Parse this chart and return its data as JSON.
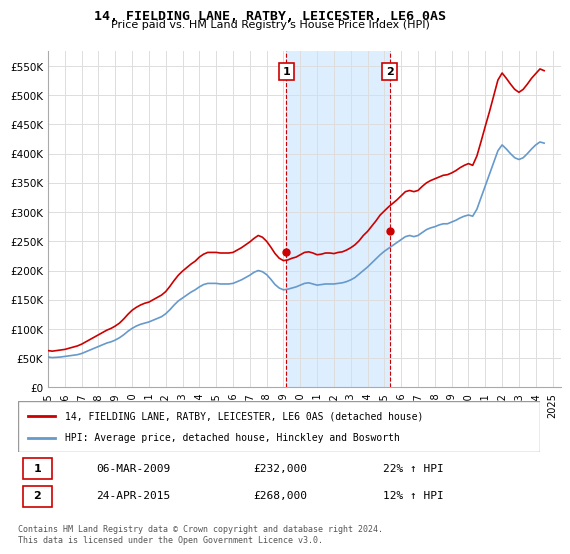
{
  "title": "14, FIELDING LANE, RATBY, LEICESTER, LE6 0AS",
  "subtitle": "Price paid vs. HM Land Registry's House Price Index (HPI)",
  "ylabel_ticks": [
    "£0",
    "£50K",
    "£100K",
    "£150K",
    "£200K",
    "£250K",
    "£300K",
    "£350K",
    "£400K",
    "£450K",
    "£500K",
    "£550K"
  ],
  "ytick_values": [
    0,
    50000,
    100000,
    150000,
    200000,
    250000,
    300000,
    350000,
    400000,
    450000,
    500000,
    550000
  ],
  "ylim": [
    0,
    575000
  ],
  "xlim_start": 1995.0,
  "xlim_end": 2025.5,
  "xtick_years": [
    1995,
    1996,
    1997,
    1998,
    1999,
    2000,
    2001,
    2002,
    2003,
    2004,
    2005,
    2006,
    2007,
    2008,
    2009,
    2010,
    2011,
    2012,
    2013,
    2014,
    2015,
    2016,
    2017,
    2018,
    2019,
    2020,
    2021,
    2022,
    2023,
    2024,
    2025
  ],
  "sale1_x": 2009.17,
  "sale1_y": 232000,
  "sale1_label": "1",
  "sale1_date": "06-MAR-2009",
  "sale1_price": "£232,000",
  "sale1_hpi": "22% ↑ HPI",
  "sale2_x": 2015.31,
  "sale2_y": 268000,
  "sale2_label": "2",
  "sale2_date": "24-APR-2015",
  "sale2_price": "£268,000",
  "sale2_hpi": "12% ↑ HPI",
  "shaded_region_x1": 2009.17,
  "shaded_region_x2": 2015.31,
  "red_line_color": "#cc0000",
  "blue_line_color": "#6699cc",
  "shaded_color": "#ddeeff",
  "grid_color": "#dddddd",
  "legend_label_red": "14, FIELDING LANE, RATBY, LEICESTER, LE6 0AS (detached house)",
  "legend_label_blue": "HPI: Average price, detached house, Hinckley and Bosworth",
  "footnote": "Contains HM Land Registry data © Crown copyright and database right 2024.\nThis data is licensed under the Open Government Licence v3.0.",
  "hpi_data_x": [
    1995.0,
    1995.25,
    1995.5,
    1995.75,
    1996.0,
    1996.25,
    1996.5,
    1996.75,
    1997.0,
    1997.25,
    1997.5,
    1997.75,
    1998.0,
    1998.25,
    1998.5,
    1998.75,
    1999.0,
    1999.25,
    1999.5,
    1999.75,
    2000.0,
    2000.25,
    2000.5,
    2000.75,
    2001.0,
    2001.25,
    2001.5,
    2001.75,
    2002.0,
    2002.25,
    2002.5,
    2002.75,
    2003.0,
    2003.25,
    2003.5,
    2003.75,
    2004.0,
    2004.25,
    2004.5,
    2004.75,
    2005.0,
    2005.25,
    2005.5,
    2005.75,
    2006.0,
    2006.25,
    2006.5,
    2006.75,
    2007.0,
    2007.25,
    2007.5,
    2007.75,
    2008.0,
    2008.25,
    2008.5,
    2008.75,
    2009.0,
    2009.25,
    2009.5,
    2009.75,
    2010.0,
    2010.25,
    2010.5,
    2010.75,
    2011.0,
    2011.25,
    2011.5,
    2011.75,
    2012.0,
    2012.25,
    2012.5,
    2012.75,
    2013.0,
    2013.25,
    2013.5,
    2013.75,
    2014.0,
    2014.25,
    2014.5,
    2014.75,
    2015.0,
    2015.25,
    2015.5,
    2015.75,
    2016.0,
    2016.25,
    2016.5,
    2016.75,
    2017.0,
    2017.25,
    2017.5,
    2017.75,
    2018.0,
    2018.25,
    2018.5,
    2018.75,
    2019.0,
    2019.25,
    2019.5,
    2019.75,
    2020.0,
    2020.25,
    2020.5,
    2020.75,
    2021.0,
    2021.25,
    2021.5,
    2021.75,
    2022.0,
    2022.25,
    2022.5,
    2022.75,
    2023.0,
    2023.25,
    2023.5,
    2023.75,
    2024.0,
    2024.25,
    2024.5
  ],
  "hpi_data_y": [
    52000,
    51000,
    51500,
    52000,
    53000,
    54000,
    55000,
    56000,
    58000,
    61000,
    64000,
    67000,
    70000,
    73000,
    76000,
    78000,
    81000,
    85000,
    90000,
    96000,
    101000,
    105000,
    108000,
    110000,
    112000,
    115000,
    118000,
    121000,
    126000,
    133000,
    141000,
    148000,
    153000,
    158000,
    163000,
    167000,
    172000,
    176000,
    178000,
    178000,
    178000,
    177000,
    177000,
    177000,
    178000,
    181000,
    184000,
    188000,
    192000,
    197000,
    200000,
    198000,
    193000,
    185000,
    176000,
    170000,
    167000,
    168000,
    170000,
    172000,
    175000,
    178000,
    179000,
    177000,
    175000,
    176000,
    177000,
    177000,
    177000,
    178000,
    179000,
    181000,
    184000,
    188000,
    194000,
    200000,
    206000,
    213000,
    220000,
    227000,
    233000,
    238000,
    243000,
    248000,
    253000,
    258000,
    260000,
    258000,
    260000,
    265000,
    270000,
    273000,
    275000,
    278000,
    280000,
    280000,
    283000,
    286000,
    290000,
    293000,
    295000,
    293000,
    305000,
    325000,
    345000,
    365000,
    385000,
    405000,
    415000,
    408000,
    400000,
    393000,
    390000,
    393000,
    400000,
    408000,
    415000,
    420000,
    418000
  ],
  "red_hpi_data_x": [
    1995.0,
    1995.25,
    1995.5,
    1995.75,
    1996.0,
    1996.25,
    1996.5,
    1996.75,
    1997.0,
    1997.25,
    1997.5,
    1997.75,
    1998.0,
    1998.25,
    1998.5,
    1998.75,
    1999.0,
    1999.25,
    1999.5,
    1999.75,
    2000.0,
    2000.25,
    2000.5,
    2000.75,
    2001.0,
    2001.25,
    2001.5,
    2001.75,
    2002.0,
    2002.25,
    2002.5,
    2002.75,
    2003.0,
    2003.25,
    2003.5,
    2003.75,
    2004.0,
    2004.25,
    2004.5,
    2004.75,
    2005.0,
    2005.25,
    2005.5,
    2005.75,
    2006.0,
    2006.25,
    2006.5,
    2006.75,
    2007.0,
    2007.25,
    2007.5,
    2007.75,
    2008.0,
    2008.25,
    2008.5,
    2008.75,
    2009.0,
    2009.25,
    2009.5,
    2009.75,
    2010.0,
    2010.25,
    2010.5,
    2010.75,
    2011.0,
    2011.25,
    2011.5,
    2011.75,
    2012.0,
    2012.25,
    2012.5,
    2012.75,
    2013.0,
    2013.25,
    2013.5,
    2013.75,
    2014.0,
    2014.25,
    2014.5,
    2014.75,
    2015.0,
    2015.25,
    2015.5,
    2015.75,
    2016.0,
    2016.25,
    2016.5,
    2016.75,
    2017.0,
    2017.25,
    2017.5,
    2017.75,
    2018.0,
    2018.25,
    2018.5,
    2018.75,
    2019.0,
    2019.25,
    2019.5,
    2019.75,
    2020.0,
    2020.25,
    2020.5,
    2020.75,
    2021.0,
    2021.25,
    2021.5,
    2021.75,
    2022.0,
    2022.25,
    2022.5,
    2022.75,
    2023.0,
    2023.25,
    2023.5,
    2023.75,
    2024.0,
    2024.25,
    2024.5
  ],
  "red_hpi_data_y": [
    63000,
    62000,
    63000,
    64000,
    65000,
    67000,
    69000,
    71000,
    74000,
    78000,
    82000,
    86000,
    90000,
    94000,
    98000,
    101000,
    105000,
    110000,
    117000,
    125000,
    132000,
    137000,
    141000,
    144000,
    146000,
    150000,
    154000,
    158000,
    164000,
    173000,
    183000,
    192000,
    199000,
    205000,
    211000,
    216000,
    223000,
    228000,
    231000,
    231000,
    231000,
    230000,
    230000,
    230000,
    231000,
    235000,
    239000,
    244000,
    249000,
    255000,
    260000,
    257000,
    250000,
    240000,
    229000,
    221000,
    217000,
    218000,
    221000,
    223000,
    227000,
    231000,
    232000,
    230000,
    227000,
    228000,
    230000,
    230000,
    229000,
    231000,
    232000,
    235000,
    239000,
    244000,
    251000,
    260000,
    267000,
    276000,
    285000,
    295000,
    302000,
    309000,
    315000,
    321000,
    328000,
    335000,
    337000,
    335000,
    337000,
    344000,
    350000,
    354000,
    357000,
    360000,
    363000,
    364000,
    367000,
    371000,
    376000,
    380000,
    383000,
    380000,
    396000,
    421000,
    447000,
    472000,
    499000,
    526000,
    538000,
    529000,
    519000,
    510000,
    505000,
    510000,
    519000,
    529000,
    537000,
    545000,
    542000
  ]
}
